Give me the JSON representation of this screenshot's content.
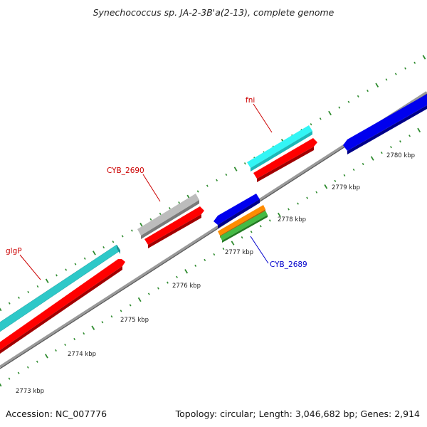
{
  "header": {
    "title": "Synechococcus sp. JA-2-3B'a(2-13), complete genome"
  },
  "footer": {
    "accession": "Accession: NC_007776",
    "info": "Topology: circular; Length: 3,046,682 bp; Genes: 2,914"
  },
  "map": {
    "ticks": [
      {
        "label": "2773 kbp"
      },
      {
        "label": "2774 kbp"
      },
      {
        "label": "2775 kbp"
      },
      {
        "label": "2776 kbp"
      },
      {
        "label": "2777 kbp"
      },
      {
        "label": "2778 kbp"
      },
      {
        "label": "2779 kbp"
      },
      {
        "label": "2780 kbp"
      }
    ],
    "gene_labels": {
      "glgP": "glgP",
      "CYB_2690": "CYB_2690",
      "fni": "fni",
      "CYB_2689": "CYB_2689"
    },
    "colors": {
      "backbone": "#8a8a8a",
      "tick": "#2e8b2e",
      "cds_forward": "#ff0000",
      "cds_reverse": "#0000ee",
      "gene_cyan": "#33f5f5",
      "gene_teal": "#2ec8c8",
      "gene_gray": "#b8b8b8",
      "gene_orange": "#ff8c00",
      "gene_green": "#44bb44",
      "label_red": "#cc0000",
      "label_blue": "#0000cc"
    }
  }
}
